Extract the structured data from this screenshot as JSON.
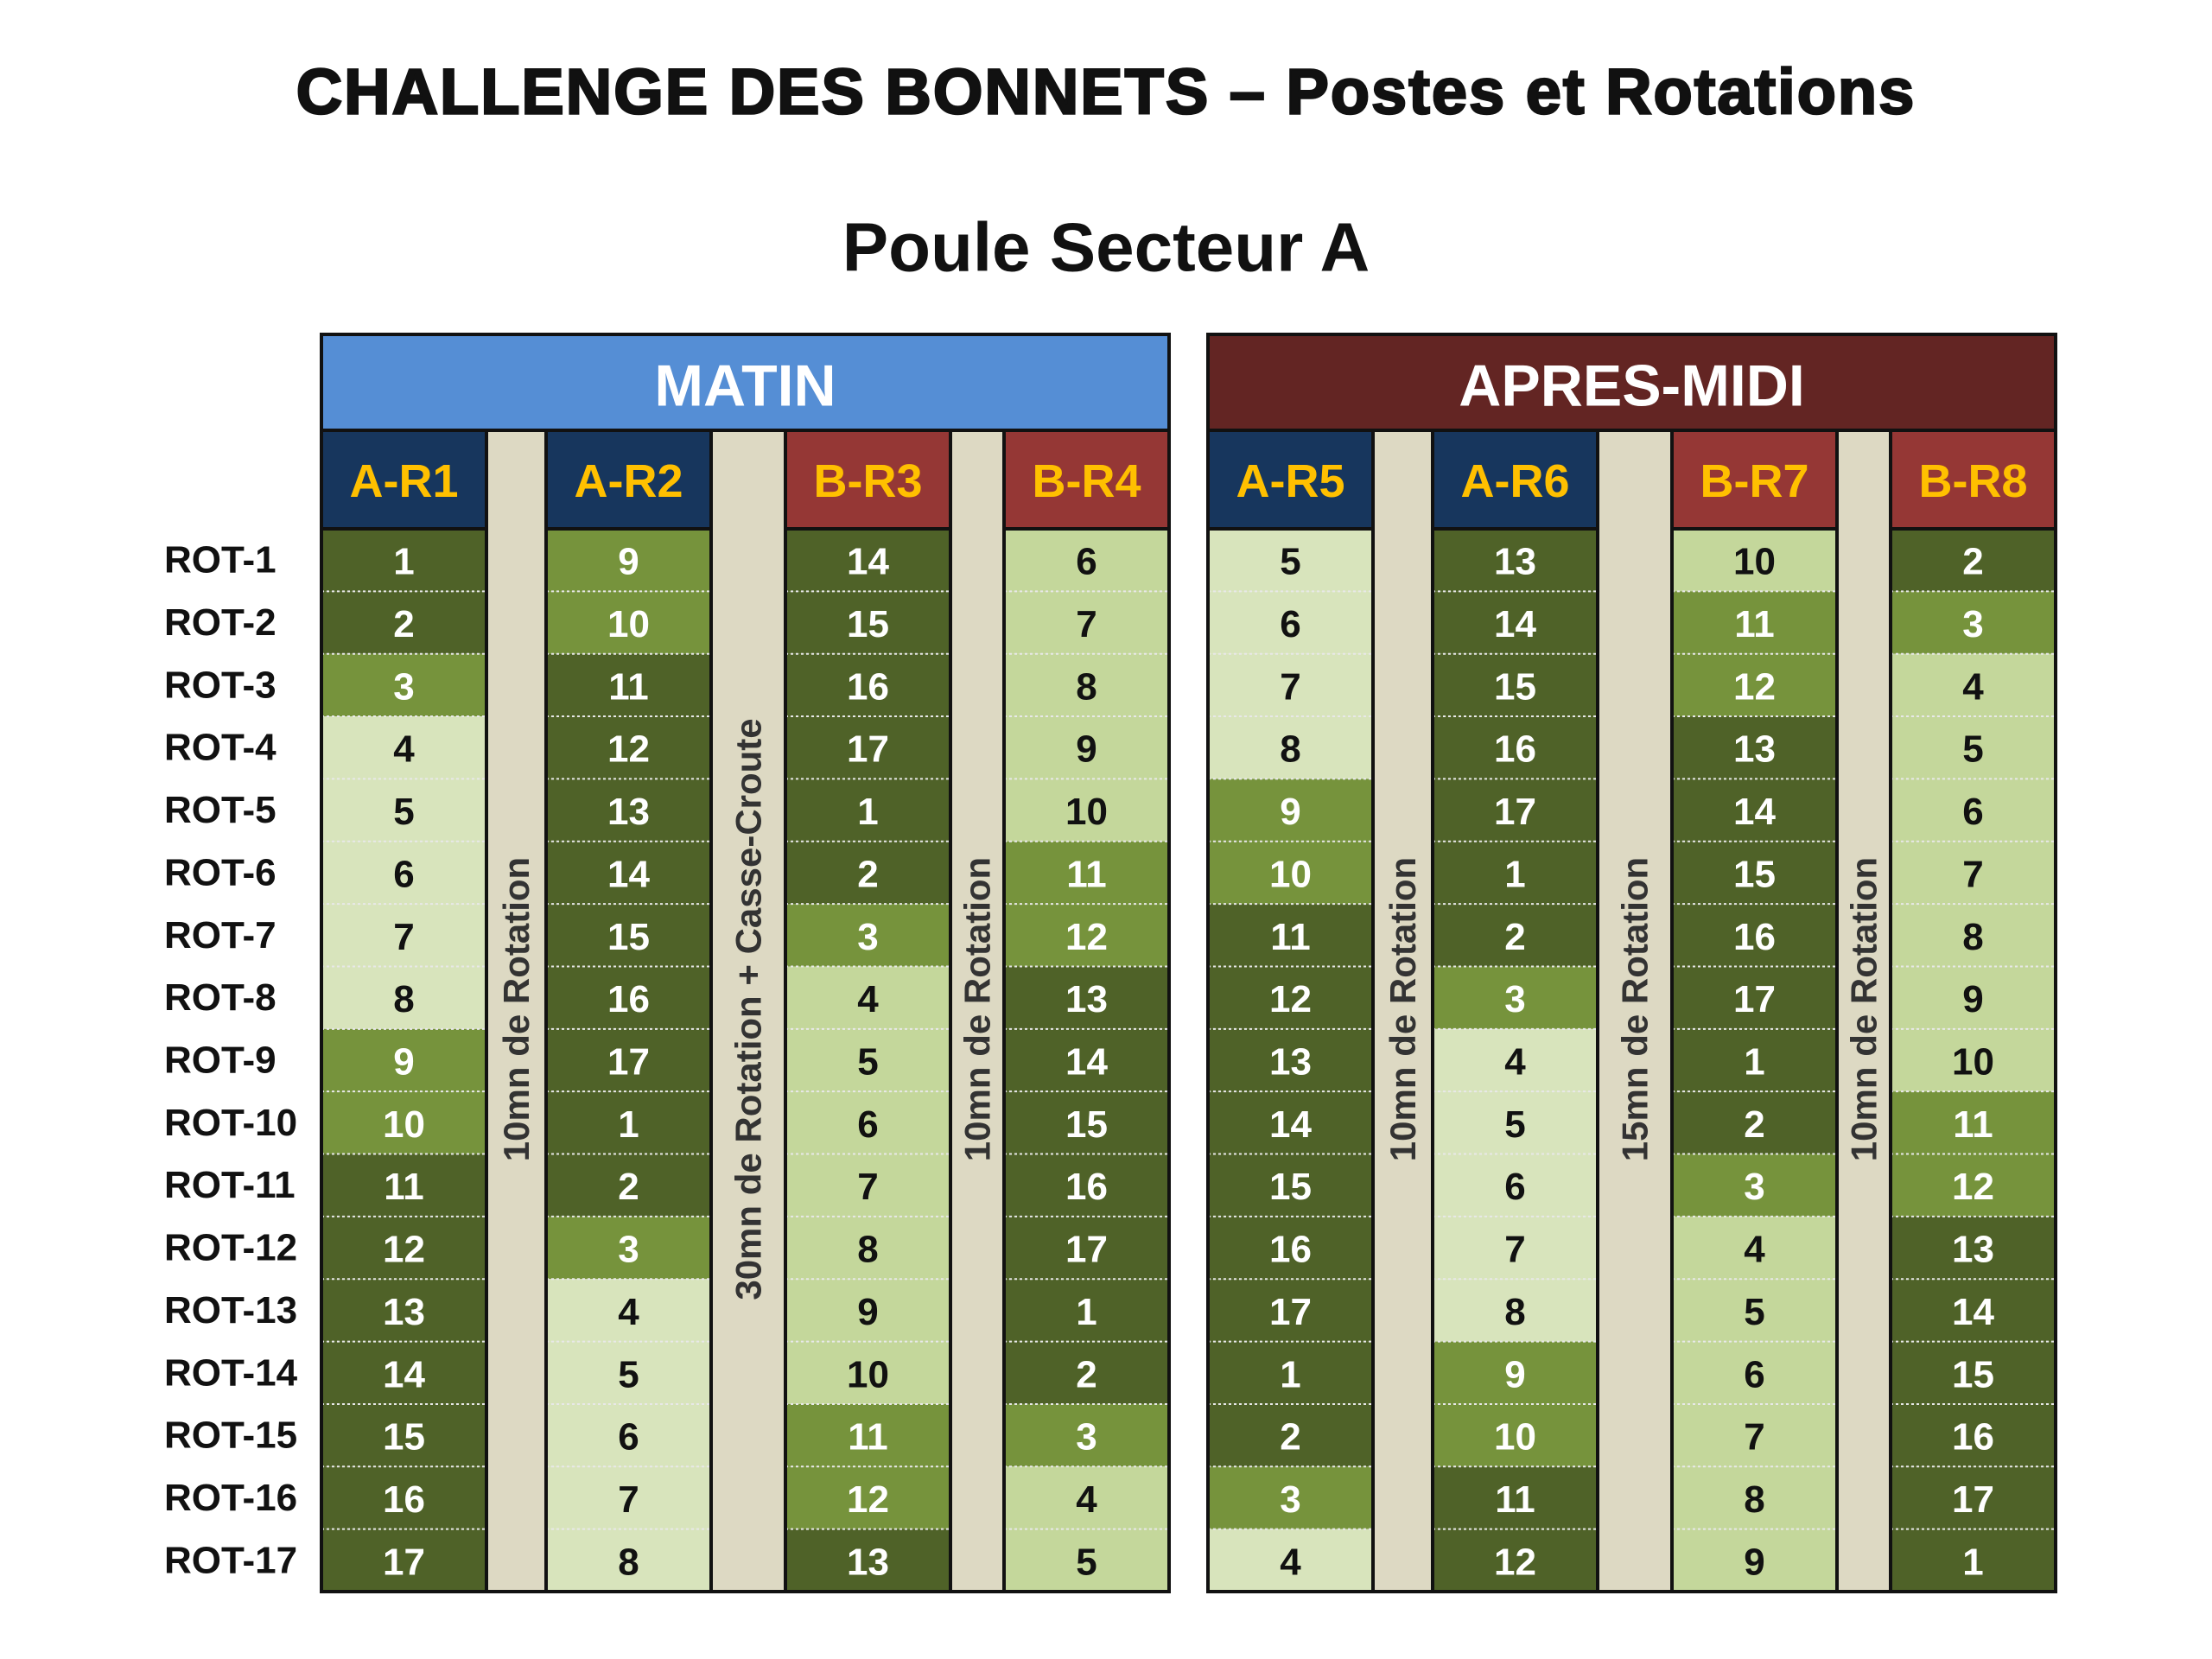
{
  "title": "CHALLENGE DES BONNETS – Postes et Rotations",
  "subtitle": "Poule Secteur A",
  "row_labels": [
    "ROT-1",
    "ROT-2",
    "ROT-3",
    "ROT-4",
    "ROT-5",
    "ROT-6",
    "ROT-7",
    "ROT-8",
    "ROT-9",
    "ROT-10",
    "ROT-11",
    "ROT-12",
    "ROT-13",
    "ROT-14",
    "ROT-15",
    "ROT-16",
    "ROT-17"
  ],
  "sections": [
    {
      "label": "MATIN",
      "color": "#558ed5",
      "breaks": [
        "10mn de Rotation",
        "30mn de Rotation + Casse-Croute",
        "10mn de Rotation"
      ],
      "columns": [
        {
          "header": "A-R1",
          "header_color": "#17365d",
          "values": [
            1,
            2,
            3,
            4,
            5,
            6,
            7,
            8,
            9,
            10,
            11,
            12,
            13,
            14,
            15,
            16,
            17
          ],
          "colors": [
            "#4f6228",
            "#4f6228",
            "#76933c",
            "#d8e4bc",
            "#d8e4bc",
            "#d8e4bc",
            "#d8e4bc",
            "#d8e4bc",
            "#76933c",
            "#76933c",
            "#4f6228",
            "#4f6228",
            "#4f6228",
            "#4f6228",
            "#4f6228",
            "#4f6228",
            "#4f6228"
          ]
        },
        {
          "header": "A-R2",
          "header_color": "#17365d",
          "values": [
            9,
            10,
            11,
            12,
            13,
            14,
            15,
            16,
            17,
            1,
            2,
            3,
            4,
            5,
            6,
            7,
            8
          ],
          "colors": [
            "#76933c",
            "#76933c",
            "#4f6228",
            "#4f6228",
            "#4f6228",
            "#4f6228",
            "#4f6228",
            "#4f6228",
            "#4f6228",
            "#4f6228",
            "#4f6228",
            "#76933c",
            "#d8e4bc",
            "#d8e4bc",
            "#d8e4bc",
            "#d8e4bc",
            "#d8e4bc"
          ]
        },
        {
          "header": "B-R3",
          "header_color": "#953735",
          "values": [
            14,
            15,
            16,
            17,
            1,
            2,
            3,
            4,
            5,
            6,
            7,
            8,
            9,
            10,
            11,
            12,
            13
          ],
          "colors": [
            "#4f6228",
            "#4f6228",
            "#4f6228",
            "#4f6228",
            "#4f6228",
            "#4f6228",
            "#76933c",
            "#c4d79b",
            "#c4d79b",
            "#c4d79b",
            "#c4d79b",
            "#c4d79b",
            "#c4d79b",
            "#c4d79b",
            "#76933c",
            "#76933c",
            "#4f6228"
          ]
        },
        {
          "header": "B-R4",
          "header_color": "#953735",
          "values": [
            6,
            7,
            8,
            9,
            10,
            11,
            12,
            13,
            14,
            15,
            16,
            17,
            1,
            2,
            3,
            4,
            5
          ],
          "colors": [
            "#c4d79b",
            "#c4d79b",
            "#c4d79b",
            "#c4d79b",
            "#c4d79b",
            "#76933c",
            "#76933c",
            "#4f6228",
            "#4f6228",
            "#4f6228",
            "#4f6228",
            "#4f6228",
            "#4f6228",
            "#4f6228",
            "#76933c",
            "#c4d79b",
            "#c4d79b"
          ]
        }
      ]
    },
    {
      "label": "APRES-MIDI",
      "color": "#632523",
      "breaks": [
        "10mn de Rotation",
        "15mn de Rotation",
        "10mn de Rotation"
      ],
      "columns": [
        {
          "header": "A-R5",
          "header_color": "#17365d",
          "values": [
            5,
            6,
            7,
            8,
            9,
            10,
            11,
            12,
            13,
            14,
            15,
            16,
            17,
            1,
            2,
            3,
            4
          ],
          "colors": [
            "#d8e4bc",
            "#d8e4bc",
            "#d8e4bc",
            "#d8e4bc",
            "#76933c",
            "#76933c",
            "#4f6228",
            "#4f6228",
            "#4f6228",
            "#4f6228",
            "#4f6228",
            "#4f6228",
            "#4f6228",
            "#4f6228",
            "#4f6228",
            "#76933c",
            "#d8e4bc"
          ]
        },
        {
          "header": "A-R6",
          "header_color": "#17365d",
          "values": [
            13,
            14,
            15,
            16,
            17,
            1,
            2,
            3,
            4,
            5,
            6,
            7,
            8,
            9,
            10,
            11,
            12
          ],
          "colors": [
            "#4f6228",
            "#4f6228",
            "#4f6228",
            "#4f6228",
            "#4f6228",
            "#4f6228",
            "#4f6228",
            "#76933c",
            "#d8e4bc",
            "#d8e4bc",
            "#d8e4bc",
            "#d8e4bc",
            "#d8e4bc",
            "#76933c",
            "#76933c",
            "#4f6228",
            "#4f6228"
          ]
        },
        {
          "header": "B-R7",
          "header_color": "#953735",
          "values": [
            10,
            11,
            12,
            13,
            14,
            15,
            16,
            17,
            1,
            2,
            3,
            4,
            5,
            6,
            7,
            8,
            9
          ],
          "colors": [
            "#c4d79b",
            "#76933c",
            "#76933c",
            "#4f6228",
            "#4f6228",
            "#4f6228",
            "#4f6228",
            "#4f6228",
            "#4f6228",
            "#4f6228",
            "#76933c",
            "#c4d79b",
            "#c4d79b",
            "#c4d79b",
            "#c4d79b",
            "#c4d79b",
            "#c4d79b"
          ]
        },
        {
          "header": "B-R8",
          "header_color": "#953735",
          "values": [
            2,
            3,
            4,
            5,
            6,
            7,
            8,
            9,
            10,
            11,
            12,
            13,
            14,
            15,
            16,
            17,
            1
          ],
          "colors": [
            "#4f6228",
            "#76933c",
            "#c4d79b",
            "#c4d79b",
            "#c4d79b",
            "#c4d79b",
            "#c4d79b",
            "#c4d79b",
            "#c4d79b",
            "#76933c",
            "#76933c",
            "#4f6228",
            "#4f6228",
            "#4f6228",
            "#4f6228",
            "#4f6228",
            "#4f6228"
          ]
        }
      ]
    }
  ]
}
